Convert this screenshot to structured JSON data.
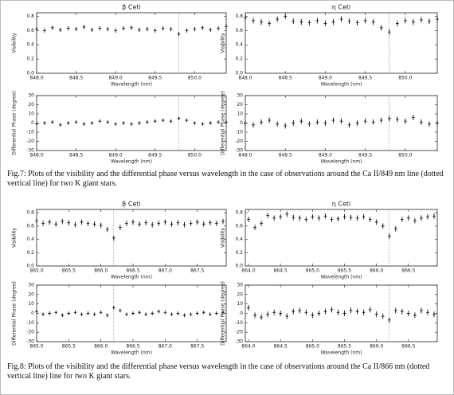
{
  "chart_data": [
    {
      "type": "scatter",
      "title": "β Ceti",
      "x_label": "Wavelength (nm)",
      "y_label": "Visibility",
      "x": [
        848.0,
        848.1,
        848.2,
        848.3,
        848.4,
        848.5,
        848.6,
        848.7,
        848.8,
        848.9,
        849.0,
        849.1,
        849.2,
        849.3,
        849.4,
        849.5,
        849.6,
        849.7,
        849.8,
        849.9,
        850.0,
        850.1,
        850.2,
        850.3,
        850.4
      ],
      "values": [
        0.62,
        0.6,
        0.64,
        0.61,
        0.63,
        0.62,
        0.65,
        0.61,
        0.63,
        0.62,
        0.6,
        0.63,
        0.64,
        0.61,
        0.62,
        0.6,
        0.63,
        0.62,
        0.55,
        0.6,
        0.62,
        0.64,
        0.61,
        0.63,
        0.66
      ],
      "error": 0.03,
      "line_at": 849.8,
      "xlim": [
        848.0,
        850.4
      ],
      "ylim": [
        0,
        0.85
      ],
      "xticks": [
        {
          "value": 848,
          "label": "848.0"
        },
        848.5,
        {
          "value": 849,
          "label": "849.0"
        },
        849.5,
        {
          "value": 850,
          "label": "850.0"
        }
      ],
      "yticks": [
        {
          "value": 0,
          "label": "0.0"
        },
        0.2,
        0.4,
        0.6,
        0.8
      ]
    },
    {
      "type": "scatter",
      "title": "η Ceti",
      "x_label": "Wavelength (nm)",
      "y_label": "Visibility",
      "x": [
        848.0,
        848.1,
        848.2,
        848.3,
        848.4,
        848.5,
        848.6,
        848.7,
        848.8,
        848.9,
        849.0,
        849.1,
        849.2,
        849.3,
        849.4,
        849.5,
        849.6,
        849.7,
        849.8,
        849.9,
        850.0,
        850.1,
        850.2,
        850.3,
        850.4
      ],
      "values": [
        0.78,
        0.74,
        0.72,
        0.7,
        0.76,
        0.8,
        0.73,
        0.72,
        0.71,
        0.74,
        0.7,
        0.72,
        0.76,
        0.73,
        0.71,
        0.74,
        0.72,
        0.64,
        0.58,
        0.7,
        0.74,
        0.72,
        0.75,
        0.73,
        0.76
      ],
      "error": 0.04,
      "line_at": 849.8,
      "xlim": [
        848.0,
        850.4
      ],
      "ylim": [
        0,
        0.85
      ],
      "xticks": [
        {
          "value": 848,
          "label": "848.0"
        },
        848.5,
        {
          "value": 849,
          "label": "849.0"
        },
        849.5,
        {
          "value": 850,
          "label": "850.0"
        }
      ],
      "yticks": [
        {
          "value": 0,
          "label": "0.0"
        },
        0.2,
        0.4,
        0.6,
        0.8
      ]
    },
    {
      "type": "scatter",
      "x_label": "Wavelength (nm)",
      "y_label": "Differential Phase (degree)",
      "x": [
        848.0,
        848.1,
        848.2,
        848.3,
        848.4,
        848.5,
        848.6,
        848.7,
        848.8,
        848.9,
        849.0,
        849.1,
        849.2,
        849.3,
        849.4,
        849.5,
        849.6,
        849.7,
        849.8,
        849.9,
        850.0,
        850.1,
        850.2,
        850.3,
        850.4
      ],
      "values": [
        -1,
        0,
        1,
        -2,
        0,
        1,
        -1,
        0,
        2,
        1,
        -1,
        0,
        -1,
        0,
        1,
        2,
        3,
        2,
        5,
        3,
        0,
        -1,
        0,
        1,
        1
      ],
      "error": 2,
      "line_at": 849.8,
      "xlim": [
        848.0,
        850.4
      ],
      "ylim": [
        -30,
        30
      ],
      "xticks": [
        {
          "value": 848,
          "label": "848.0"
        },
        848.5,
        {
          "value": 849,
          "label": "849.0"
        },
        849.5,
        {
          "value": 850,
          "label": "850.0"
        }
      ],
      "yticks": [
        -30,
        -20,
        -10,
        0,
        10,
        20,
        30
      ]
    },
    {
      "type": "scatter",
      "x_label": "Wavelength (nm)",
      "y_label": "Differential Phase (degree)",
      "x": [
        848.0,
        848.1,
        848.2,
        848.3,
        848.4,
        848.5,
        848.6,
        848.7,
        848.8,
        848.9,
        849.0,
        849.1,
        849.2,
        849.3,
        849.4,
        849.5,
        849.6,
        849.7,
        849.8,
        849.9,
        850.0,
        850.1,
        850.2,
        850.3,
        850.4
      ],
      "values": [
        0,
        -2,
        1,
        3,
        -1,
        -3,
        0,
        2,
        -1,
        1,
        0,
        3,
        2,
        -2,
        0,
        2,
        1,
        3,
        5,
        4,
        2,
        6,
        1,
        -1,
        0
      ],
      "error": 3,
      "line_at": 849.8,
      "xlim": [
        848.0,
        850.4
      ],
      "ylim": [
        -30,
        30
      ],
      "xticks": [
        {
          "value": 848,
          "label": "848.0"
        },
        848.5,
        {
          "value": 849,
          "label": "849.0"
        },
        849.5,
        {
          "value": 850,
          "label": "850.0"
        }
      ],
      "yticks": [
        -30,
        -20,
        -10,
        0,
        10,
        20,
        30
      ]
    },
    {
      "type": "scatter",
      "title": "β Ceti",
      "x_label": "Wavelength (nm)",
      "y_label": "Visibility",
      "x": [
        865.0,
        865.1,
        865.2,
        865.3,
        865.4,
        865.5,
        865.6,
        865.7,
        865.8,
        865.9,
        866.0,
        866.1,
        866.2,
        866.3,
        866.4,
        866.5,
        866.6,
        866.7,
        866.8,
        866.9,
        867.0,
        867.1,
        867.2,
        867.3,
        867.4,
        867.5,
        867.6,
        867.7,
        867.8,
        867.9
      ],
      "values": [
        0.68,
        0.64,
        0.66,
        0.63,
        0.67,
        0.65,
        0.62,
        0.66,
        0.64,
        0.63,
        0.61,
        0.55,
        0.42,
        0.58,
        0.64,
        0.66,
        0.63,
        0.65,
        0.62,
        0.64,
        0.66,
        0.63,
        0.65,
        0.62,
        0.64,
        0.66,
        0.63,
        0.65,
        0.64,
        0.67
      ],
      "error": 0.04,
      "line_at": 866.2,
      "xlim": [
        865.0,
        867.95
      ],
      "ylim": [
        0,
        0.85
      ],
      "xticks": [
        {
          "value": 865,
          "label": "865.0"
        },
        865.5,
        {
          "value": 866,
          "label": "866.0"
        },
        866.5,
        {
          "value": 867,
          "label": "867.0"
        },
        867.5
      ],
      "yticks": [
        {
          "value": 0,
          "label": "0.0"
        },
        0.2,
        0.4,
        0.6,
        0.8
      ]
    },
    {
      "type": "scatter",
      "title": "η Ceti",
      "x_label": "Wavelength (nm)",
      "y_label": "Visibility",
      "x": [
        864.0,
        864.1,
        864.2,
        864.3,
        864.4,
        864.5,
        864.6,
        864.7,
        864.8,
        864.9,
        865.0,
        865.1,
        865.2,
        865.3,
        865.4,
        865.5,
        865.6,
        865.7,
        865.8,
        865.9,
        866.0,
        866.1,
        866.2,
        866.3,
        866.4,
        866.5,
        866.6,
        866.7,
        866.8,
        866.9
      ],
      "values": [
        0.7,
        0.58,
        0.64,
        0.76,
        0.72,
        0.74,
        0.78,
        0.73,
        0.72,
        0.7,
        0.74,
        0.72,
        0.75,
        0.7,
        0.71,
        0.74,
        0.73,
        0.72,
        0.74,
        0.7,
        0.66,
        0.6,
        0.45,
        0.56,
        0.7,
        0.72,
        0.68,
        0.72,
        0.74,
        0.75
      ],
      "error": 0.04,
      "line_at": 866.2,
      "xlim": [
        863.95,
        866.95
      ],
      "ylim": [
        0,
        0.85
      ],
      "xticks": [
        {
          "value": 864,
          "label": "864.0"
        },
        864.5,
        {
          "value": 865,
          "label": "865.0"
        },
        865.5,
        {
          "value": 866,
          "label": "866.0"
        },
        866.5
      ],
      "yticks": [
        {
          "value": 0,
          "label": "0.0"
        },
        0.2,
        0.4,
        0.6,
        0.8
      ]
    },
    {
      "type": "scatter",
      "x_label": "Wavelength (nm)",
      "y_label": "Differential Phase (degree)",
      "x": [
        865.0,
        865.1,
        865.2,
        865.3,
        865.4,
        865.5,
        865.6,
        865.7,
        865.8,
        865.9,
        866.0,
        866.1,
        866.2,
        866.3,
        866.4,
        866.5,
        866.6,
        866.7,
        866.8,
        866.9,
        867.0,
        867.1,
        867.2,
        867.3,
        867.4,
        867.5,
        867.6,
        867.7,
        867.8,
        867.9
      ],
      "values": [
        2,
        -1,
        0,
        1,
        -2,
        0,
        1,
        -1,
        0,
        -1,
        1,
        -2,
        6,
        3,
        -1,
        0,
        1,
        -1,
        0,
        2,
        1,
        -1,
        0,
        -2,
        -1,
        0,
        1,
        -1,
        0,
        1
      ],
      "error": 2,
      "line_at": 866.2,
      "xlim": [
        865.0,
        867.95
      ],
      "ylim": [
        -30,
        30
      ],
      "xticks": [
        {
          "value": 865,
          "label": "865.0"
        },
        865.5,
        {
          "value": 866,
          "label": "866.0"
        },
        866.5,
        {
          "value": 867,
          "label": "867.0"
        },
        867.5
      ],
      "yticks": [
        -30,
        -20,
        -10,
        0,
        10,
        20,
        30
      ]
    },
    {
      "type": "scatter",
      "x_label": "Wavelength (nm)",
      "y_label": "Differential Phase (degree)",
      "x": [
        864.0,
        864.1,
        864.2,
        864.3,
        864.4,
        864.5,
        864.6,
        864.7,
        864.8,
        864.9,
        865.0,
        865.1,
        865.2,
        865.3,
        865.4,
        865.5,
        865.6,
        865.7,
        865.8,
        865.9,
        866.0,
        866.1,
        866.2,
        866.3,
        866.4,
        866.5,
        866.6,
        866.7,
        866.8,
        866.9
      ],
      "values": [
        6,
        -2,
        -4,
        -1,
        1,
        0,
        -3,
        2,
        3,
        1,
        -2,
        0,
        2,
        4,
        1,
        0,
        3,
        2,
        1,
        4,
        -1,
        -3,
        -7,
        3,
        2,
        0,
        -2,
        3,
        1,
        -1
      ],
      "error": 3,
      "line_at": 866.2,
      "xlim": [
        863.95,
        866.95
      ],
      "ylim": [
        -30,
        30
      ],
      "xticks": [
        {
          "value": 864,
          "label": "864.0"
        },
        864.5,
        {
          "value": 865,
          "label": "865.0"
        },
        865.5,
        {
          "value": 866,
          "label": "866.0"
        },
        866.5
      ],
      "yticks": [
        -30,
        -20,
        -10,
        0,
        10,
        20,
        30
      ]
    }
  ],
  "captions": [
    "Fig.7: Plots of the visibility and the differential phase versus wavelength in the case of observations around the Ca II/849 nm line (dotted vertical line) for two K giant stars.",
    "Fig.8: Plots of the visibility and the differential phase versus wavelength in the case of observations around the Ca II/866 nm (dotted vertical line) line for two K giant stars."
  ]
}
